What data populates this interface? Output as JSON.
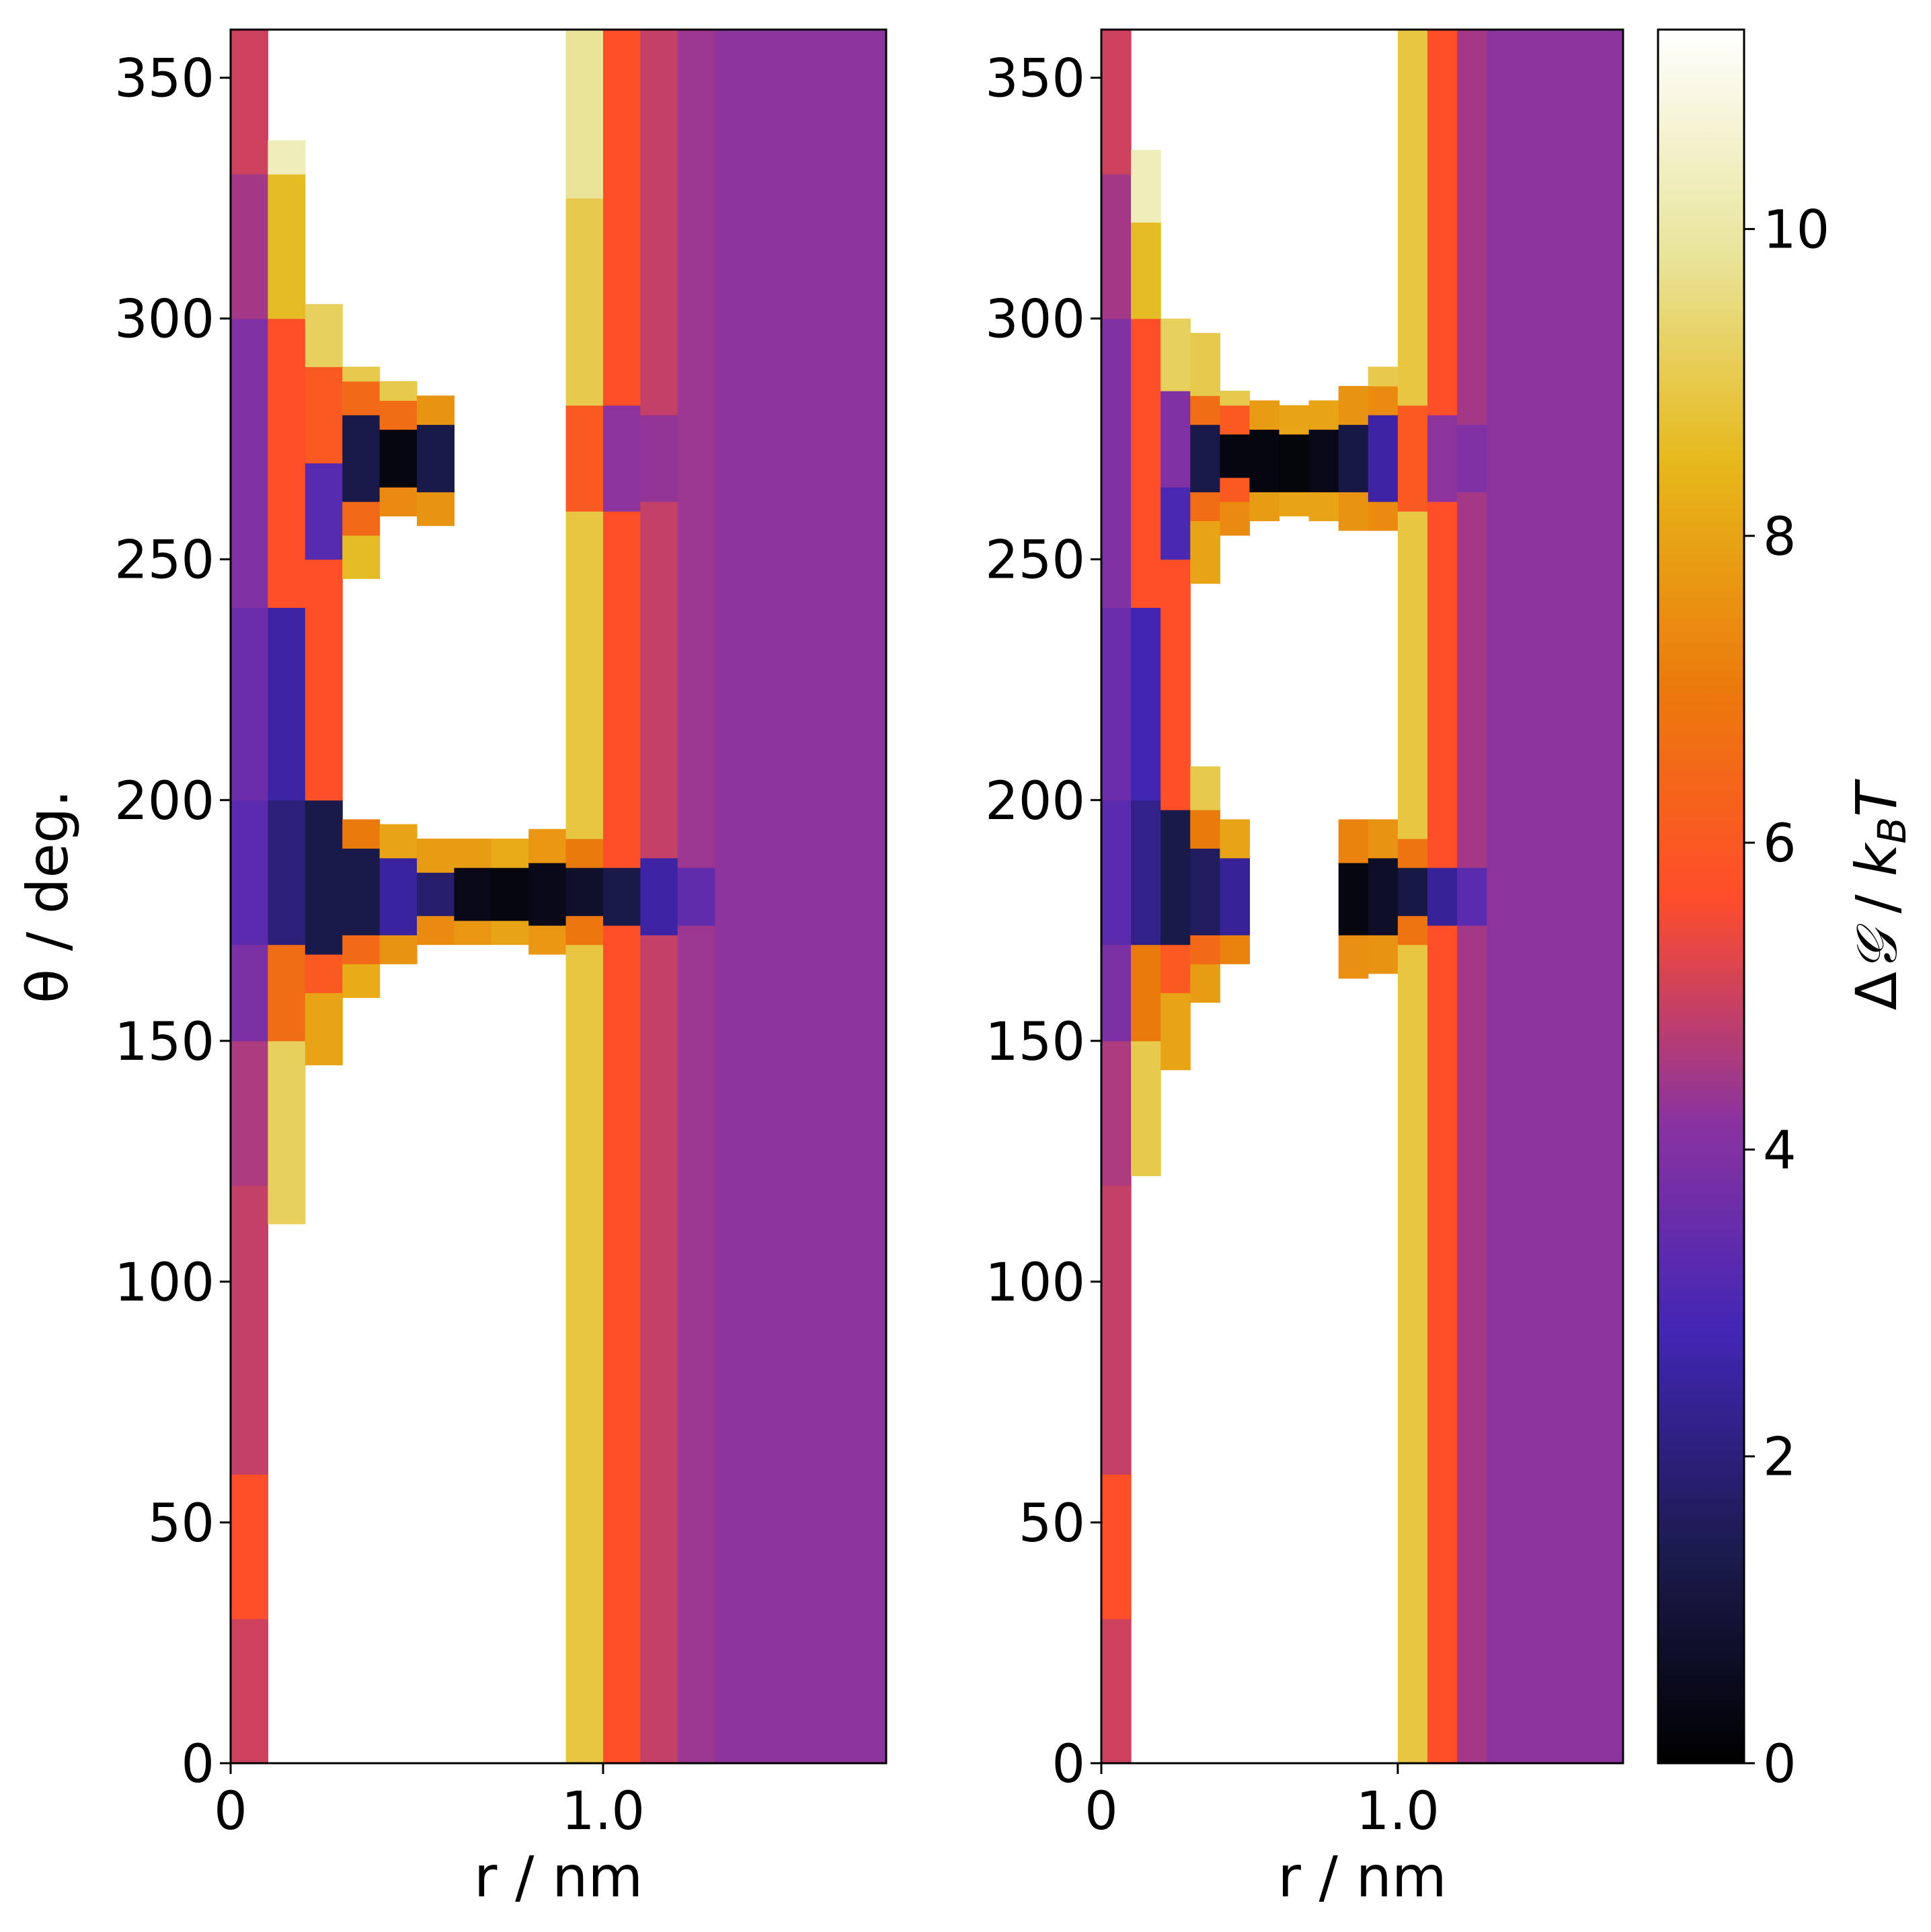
{
  "chart_data": [
    {
      "type": "heatmap",
      "title": "",
      "xlabel": "r / nm",
      "ylabel": "θ / deg.",
      "xlim": [
        0,
        1.76
      ],
      "ylim": [
        0,
        360
      ],
      "xticks": [
        0,
        1.0
      ],
      "xtick_labels": [
        "0",
        "1.0"
      ],
      "yticks": [
        0,
        50,
        100,
        150,
        200,
        250,
        300,
        350
      ],
      "ytick_labels": [
        "0",
        "50",
        "100",
        "150",
        "200",
        "250",
        "300",
        "350"
      ],
      "r_bin_width": 0.1,
      "columns": [
        {
          "r": [
            0.0,
            0.1
          ],
          "g": 5.0,
          "bands": [
            [
              0,
              30,
              5.0
            ],
            [
              30,
              60,
              5.7
            ],
            [
              60,
              120,
              4.9
            ],
            [
              120,
              150,
              4.6
            ],
            [
              150,
              170,
              3.9
            ],
            [
              170,
              200,
              3.3
            ],
            [
              200,
              240,
              3.6
            ],
            [
              240,
              300,
              4.0
            ],
            [
              300,
              330,
              4.5
            ],
            [
              330,
              360,
              5.0
            ]
          ]
        },
        {
          "r": [
            0.1,
            0.2
          ],
          "g": null,
          "bands": [
            [
              112,
              150,
              9.2
            ],
            [
              150,
              170,
              6.6
            ],
            [
              170,
              200,
              2.0
            ],
            [
              200,
              240,
              2.6
            ],
            [
              240,
              300,
              5.7
            ],
            [
              300,
              330,
              8.6
            ],
            [
              330,
              337,
              10.3
            ]
          ]
        },
        {
          "r": [
            0.2,
            0.3
          ],
          "g": null,
          "bands": [
            [
              145,
              160,
              8.0
            ],
            [
              160,
              168,
              6.0
            ],
            [
              168,
              200,
              1.3
            ],
            [
              200,
              250,
              5.7
            ],
            [
              250,
              270,
              3.2
            ],
            [
              270,
              290,
              6.0
            ],
            [
              290,
              303,
              9.2
            ]
          ]
        },
        {
          "r": [
            0.3,
            0.4
          ],
          "g": null,
          "bands": [
            [
              159,
              166,
              8.2
            ],
            [
              166,
              172,
              6.5
            ],
            [
              172,
              190,
              1.3
            ],
            [
              190,
              196,
              7.0
            ],
            [
              246,
              255,
              8.6
            ],
            [
              255,
              262,
              6.5
            ],
            [
              262,
              280,
              1.3
            ],
            [
              280,
              287,
              6.5
            ],
            [
              287,
              290,
              9.0
            ]
          ]
        },
        {
          "r": [
            0.4,
            0.5
          ],
          "g": null,
          "bands": [
            [
              166,
              172,
              7.6
            ],
            [
              172,
              188,
              2.5
            ],
            [
              188,
              195,
              8.0
            ],
            [
              259,
              265,
              7.4
            ],
            [
              265,
              277,
              0.3
            ],
            [
              277,
              283,
              6.6
            ],
            [
              283,
              287,
              9.0
            ]
          ]
        },
        {
          "r": [
            0.5,
            0.6
          ],
          "g": null,
          "bands": [
            [
              170,
              176,
              7.4
            ],
            [
              176,
              185,
              1.8
            ],
            [
              185,
              192,
              7.8
            ],
            [
              257,
              264,
              7.6
            ],
            [
              264,
              278,
              1.3
            ],
            [
              278,
              284,
              7.6
            ]
          ]
        },
        {
          "r": [
            0.6,
            0.7
          ],
          "g": null,
          "bands": [
            [
              170,
              175,
              7.7
            ],
            [
              175,
              186,
              0.4
            ],
            [
              186,
              192,
              7.8
            ]
          ]
        },
        {
          "r": [
            0.7,
            0.8
          ],
          "g": null,
          "bands": [
            [
              170,
              175,
              8.0
            ],
            [
              175,
              186,
              0.3
            ],
            [
              186,
              192,
              8.2
            ]
          ]
        },
        {
          "r": [
            0.8,
            0.9
          ],
          "g": null,
          "bands": [
            [
              168,
              174,
              7.7
            ],
            [
              174,
              187,
              0.4
            ],
            [
              187,
              194,
              7.7
            ]
          ]
        },
        {
          "r": [
            0.9,
            1.0
          ],
          "g": null,
          "bands": [
            [
              0,
              170,
              8.9
            ],
            [
              170,
              176,
              6.9
            ],
            [
              176,
              186,
              0.8
            ],
            [
              186,
              192,
              7.0
            ],
            [
              192,
              260,
              8.9
            ],
            [
              260,
              282,
              6.0
            ],
            [
              282,
              325,
              9.0
            ],
            [
              325,
              360,
              9.8
            ]
          ]
        },
        {
          "r": [
            1.0,
            1.1
          ],
          "g": 5.7,
          "bands": [
            [
              0,
              174,
              5.7
            ],
            [
              174,
              186,
              1.3
            ],
            [
              186,
              260,
              5.7
            ],
            [
              260,
              282,
              4.2
            ],
            [
              282,
              360,
              5.7
            ]
          ]
        },
        {
          "r": [
            1.1,
            1.2
          ],
          "g": 4.9,
          "bands": [
            [
              0,
              172,
              4.9
            ],
            [
              172,
              188,
              2.6
            ],
            [
              188,
              262,
              4.9
            ],
            [
              262,
              280,
              4.3
            ],
            [
              280,
              360,
              4.9
            ]
          ]
        },
        {
          "r": [
            1.2,
            1.3
          ],
          "g": 4.4,
          "bands": [
            [
              0,
              174,
              4.4
            ],
            [
              174,
              186,
              3.4
            ],
            [
              186,
              360,
              4.4
            ]
          ]
        },
        {
          "r": [
            1.3,
            1.76
          ],
          "g": 4.2,
          "bands": [
            [
              0,
              360,
              4.2
            ]
          ]
        }
      ]
    },
    {
      "type": "heatmap",
      "title": "",
      "xlabel": "r / nm",
      "ylabel": "",
      "xlim": [
        0,
        1.76
      ],
      "ylim": [
        0,
        360
      ],
      "xticks": [
        0,
        1.0
      ],
      "xtick_labels": [
        "0",
        "1.0"
      ],
      "yticks": [
        0,
        50,
        100,
        150,
        200,
        250,
        300,
        350
      ],
      "ytick_labels": [
        "0",
        "50",
        "100",
        "150",
        "200",
        "250",
        "300",
        "350"
      ],
      "r_bin_width": 0.1,
      "columns": [
        {
          "r": [
            0.0,
            0.1
          ],
          "g": 5.0,
          "bands": [
            [
              0,
              30,
              5.0
            ],
            [
              30,
              60,
              5.7
            ],
            [
              60,
              120,
              4.9
            ],
            [
              120,
              150,
              4.6
            ],
            [
              150,
              170,
              3.9
            ],
            [
              170,
              200,
              3.3
            ],
            [
              200,
              240,
              3.6
            ],
            [
              240,
              300,
              4.0
            ],
            [
              300,
              330,
              4.5
            ],
            [
              330,
              360,
              5.0
            ]
          ]
        },
        {
          "r": [
            0.1,
            0.2
          ],
          "g": null,
          "bands": [
            [
              122,
              150,
              9.0
            ],
            [
              150,
              170,
              7.0
            ],
            [
              170,
              200,
              2.2
            ],
            [
              200,
              240,
              2.8
            ],
            [
              240,
              300,
              5.7
            ],
            [
              300,
              320,
              8.6
            ],
            [
              320,
              335,
              10.3
            ]
          ]
        },
        {
          "r": [
            0.2,
            0.3
          ],
          "g": null,
          "bands": [
            [
              144,
              160,
              8.0
            ],
            [
              160,
              170,
              6.0
            ],
            [
              170,
              198,
              1.3
            ],
            [
              198,
              250,
              5.7
            ],
            [
              250,
              265,
              3.0
            ],
            [
              265,
              285,
              4.0
            ],
            [
              285,
              300,
              9.2
            ]
          ]
        },
        {
          "r": [
            0.3,
            0.4
          ],
          "g": null,
          "bands": [
            [
              158,
              166,
              7.8
            ],
            [
              166,
              172,
              6.5
            ],
            [
              172,
              190,
              1.6
            ],
            [
              190,
              198,
              7.0
            ],
            [
              198,
              207,
              9.0
            ],
            [
              245,
              258,
              8.0
            ],
            [
              258,
              264,
              6.6
            ],
            [
              264,
              278,
              1.3
            ],
            [
              278,
              284,
              6.6
            ],
            [
              284,
              297,
              9.0
            ]
          ]
        },
        {
          "r": [
            0.4,
            0.5
          ],
          "g": null,
          "bands": [
            [
              166,
              172,
              7.2
            ],
            [
              172,
              188,
              2.4
            ],
            [
              188,
              196,
              8.0
            ],
            [
              255,
              262,
              7.4
            ],
            [
              262,
              267,
              6.0
            ],
            [
              267,
              276,
              0.3
            ],
            [
              276,
              282,
              6.0
            ],
            [
              282,
              285,
              9.0
            ]
          ]
        },
        {
          "r": [
            0.5,
            0.6
          ],
          "g": null,
          "bands": [
            [
              258,
              264,
              7.8
            ],
            [
              264,
              277,
              0.3
            ],
            [
              277,
              283,
              7.8
            ]
          ]
        },
        {
          "r": [
            0.6,
            0.7
          ],
          "g": null,
          "bands": [
            [
              259,
              264,
              8.0
            ],
            [
              264,
              276,
              0.2
            ],
            [
              276,
              282,
              8.0
            ]
          ]
        },
        {
          "r": [
            0.7,
            0.8
          ],
          "g": null,
          "bands": [
            [
              258,
              264,
              8.0
            ],
            [
              264,
              277,
              0.4
            ],
            [
              277,
              283,
              8.0
            ]
          ]
        },
        {
          "r": [
            0.8,
            0.9
          ],
          "g": null,
          "bands": [
            [
              163,
              172,
              7.5
            ],
            [
              172,
              187,
              0.3
            ],
            [
              187,
              196,
              7.2
            ],
            [
              256,
              264,
              7.6
            ],
            [
              264,
              278,
              1.2
            ],
            [
              278,
              286,
              7.6
            ]
          ]
        },
        {
          "r": [
            0.9,
            1.0
          ],
          "g": null,
          "bands": [
            [
              164,
              172,
              7.6
            ],
            [
              172,
              188,
              0.7
            ],
            [
              188,
              196,
              7.6
            ],
            [
              256,
              262,
              7.4
            ],
            [
              262,
              280,
              2.6
            ],
            [
              280,
              286,
              7.4
            ],
            [
              286,
              290,
              9.0
            ]
          ]
        },
        {
          "r": [
            1.0,
            1.1
          ],
          "g": 8.9,
          "bands": [
            [
              0,
              170,
              8.9
            ],
            [
              170,
              176,
              6.8
            ],
            [
              176,
              186,
              1.2
            ],
            [
              186,
              192,
              6.8
            ],
            [
              192,
              260,
              8.9
            ],
            [
              260,
              282,
              6.0
            ],
            [
              282,
              360,
              8.9
            ]
          ]
        },
        {
          "r": [
            1.1,
            1.2
          ],
          "g": 5.7,
          "bands": [
            [
              0,
              174,
              5.7
            ],
            [
              174,
              186,
              2.4
            ],
            [
              186,
              262,
              5.7
            ],
            [
              262,
              280,
              4.2
            ],
            [
              280,
              360,
              5.7
            ]
          ]
        },
        {
          "r": [
            1.2,
            1.3
          ],
          "g": 4.5,
          "bands": [
            [
              0,
              174,
              4.5
            ],
            [
              174,
              186,
              3.3
            ],
            [
              186,
              264,
              4.5
            ],
            [
              264,
              278,
              4.0
            ],
            [
              278,
              360,
              4.5
            ]
          ]
        },
        {
          "r": [
            1.3,
            1.76
          ],
          "g": 4.2,
          "bands": [
            [
              0,
              360,
              4.2
            ]
          ]
        }
      ]
    }
  ],
  "colorbar": {
    "label": "ΔG / kBT",
    "label_parts": {
      "delta": "Δ",
      "g": "𝒢",
      "sep": " / ",
      "k": "k",
      "sub": "B",
      "t": "T"
    },
    "range": [
      0,
      11.3
    ],
    "ticks": [
      0,
      2,
      4,
      6,
      8,
      10
    ],
    "tick_labels": [
      "0",
      "2",
      "4",
      "6",
      "8",
      "10"
    ],
    "colormap": "CMRmap",
    "stops": [
      [
        0.0,
        "#000000"
      ],
      [
        0.12,
        "#1b1b4d"
      ],
      [
        0.25,
        "#4226b5"
      ],
      [
        0.37,
        "#8a33a0"
      ],
      [
        0.5,
        "#ff4d2a"
      ],
      [
        0.62,
        "#eb7a0c"
      ],
      [
        0.75,
        "#e6b81a"
      ],
      [
        0.87,
        "#e8e49a"
      ],
      [
        1.0,
        "#ffffff"
      ]
    ]
  }
}
